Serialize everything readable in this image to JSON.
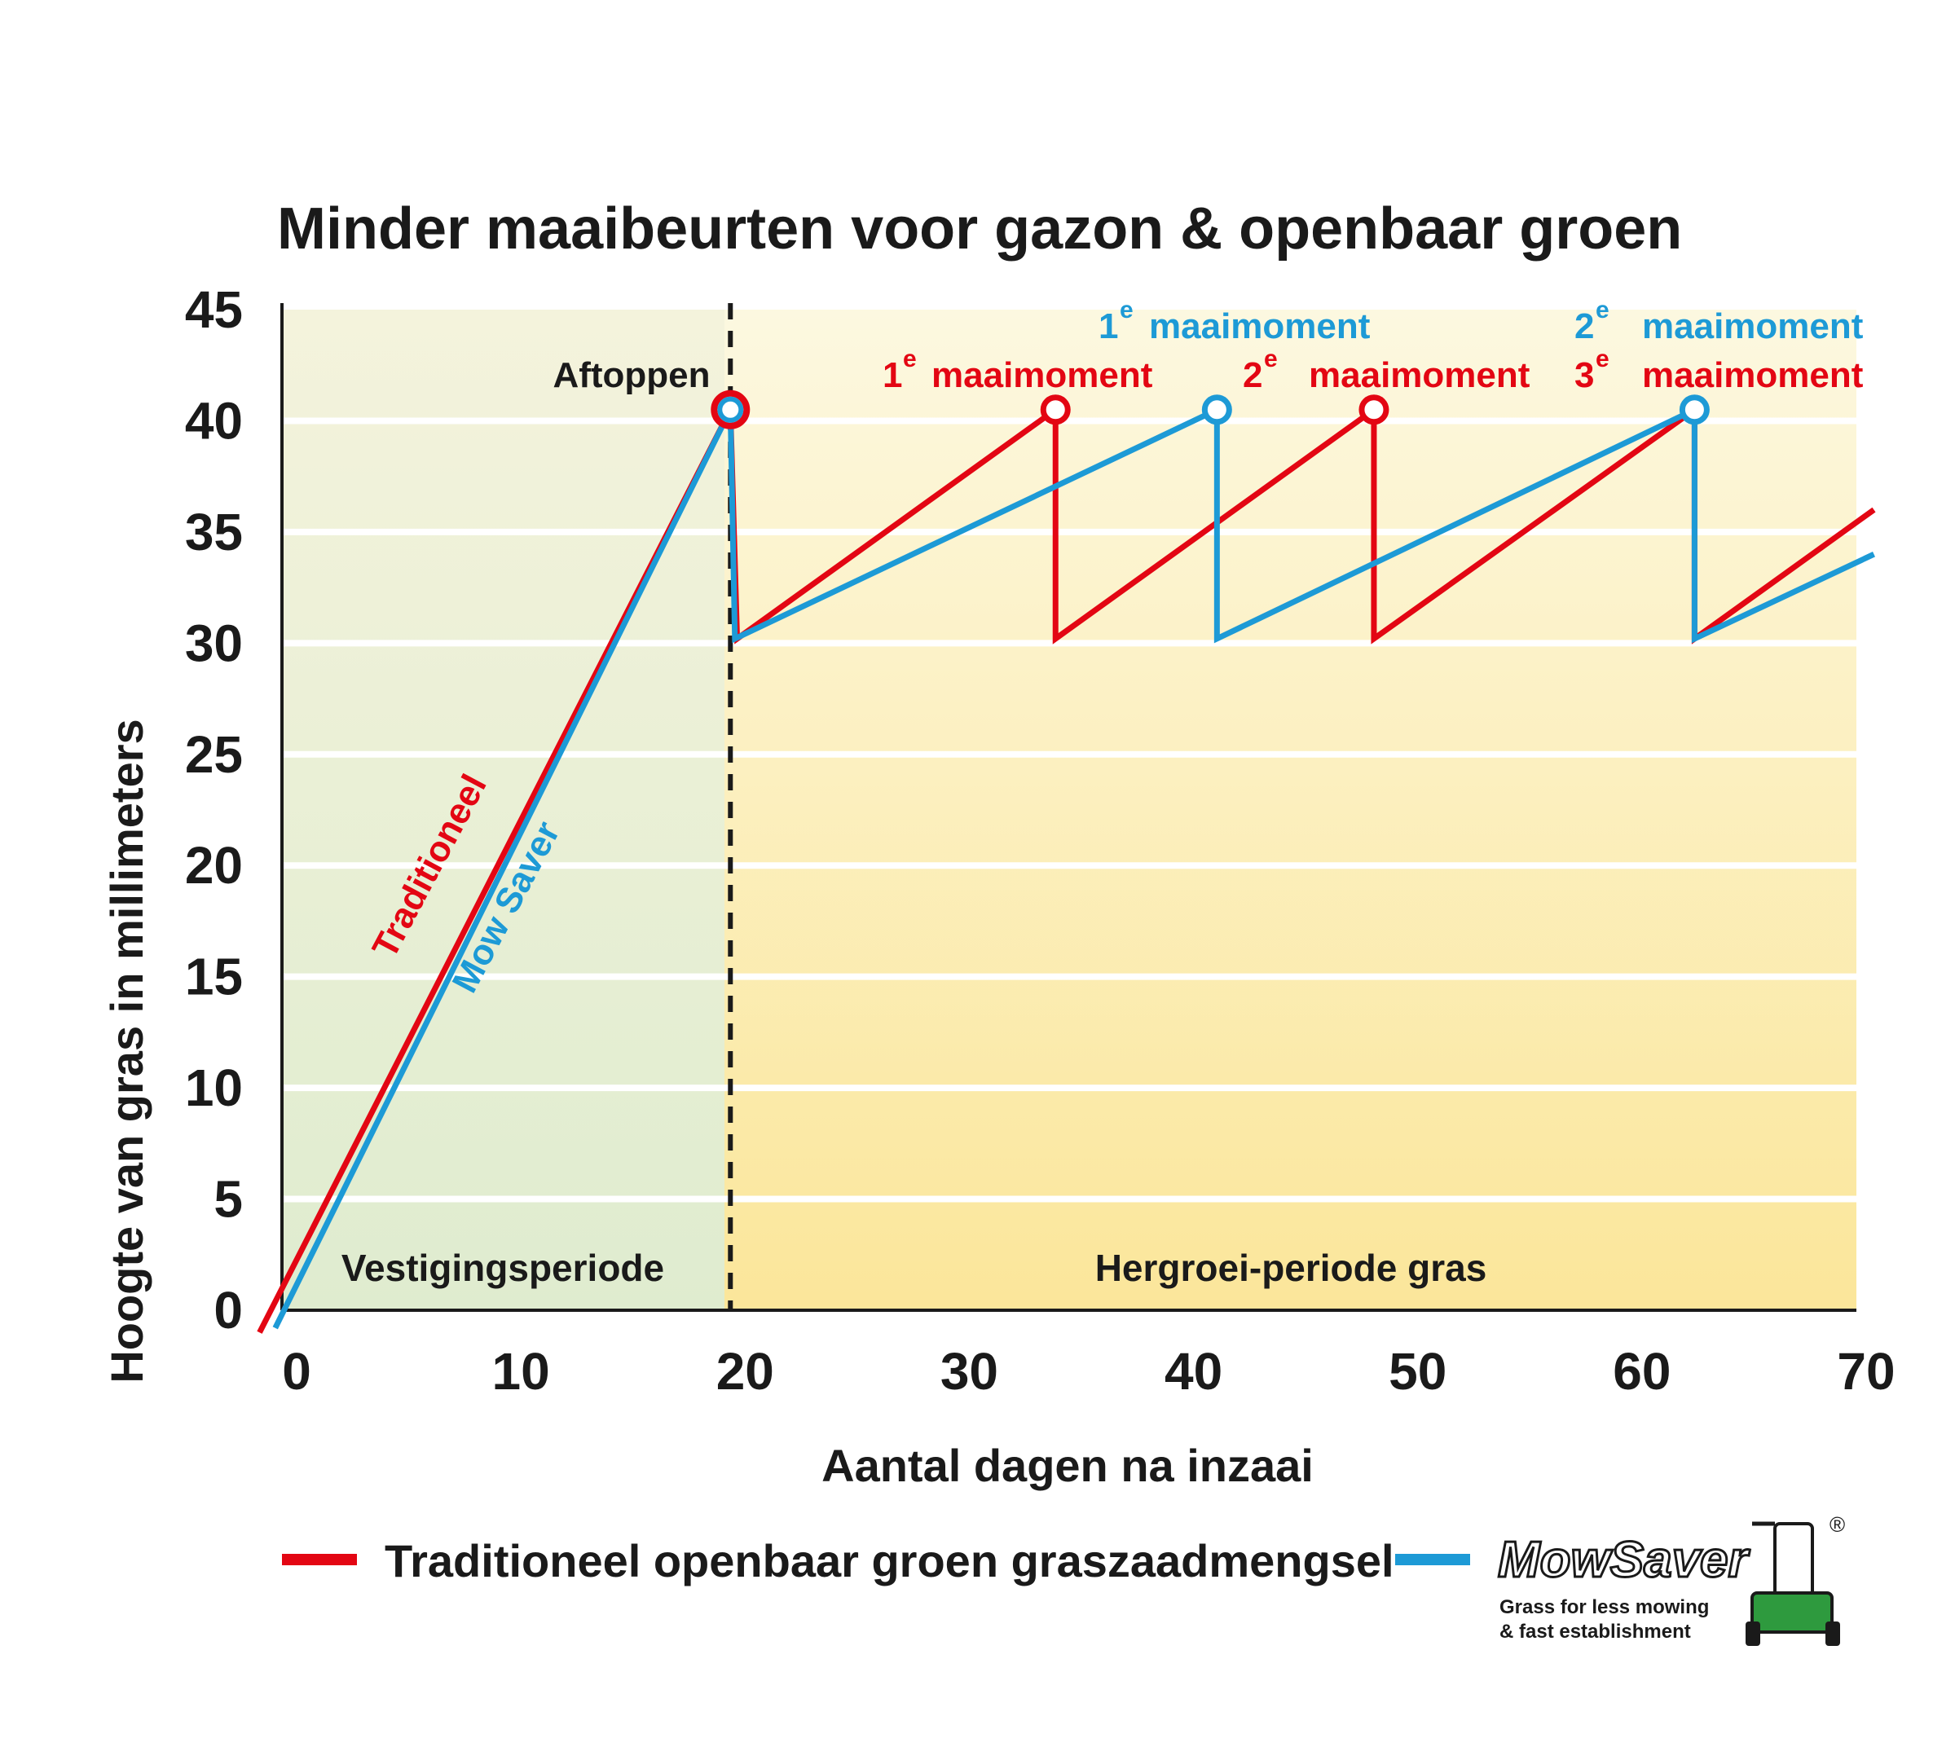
{
  "colors": {
    "traditional": "#e30613",
    "mowsaver": "#1d9ad6",
    "establishment_top": "#f4f3dc",
    "establishment_bottom": "#dfeccf",
    "regrowth_top": "#fcf8e0",
    "regrowth_bottom": "#fbe69a",
    "logo_green": "#2e9a3e"
  },
  "chart_data": {
    "type": "line",
    "title": "Minder maaibeurten voor gazon & openbaar groen",
    "xlabel": "Aantal dagen na inzaai",
    "ylabel": "Hoogte van gras in millimeters",
    "xlim": [
      0,
      70
    ],
    "ylim": [
      0,
      45
    ],
    "x_ticks": [
      0,
      10,
      20,
      30,
      40,
      50,
      60,
      70
    ],
    "y_ticks": [
      0,
      5,
      10,
      15,
      20,
      25,
      30,
      35,
      40,
      45
    ],
    "grid": true,
    "series": [
      {
        "name": "Traditioneel",
        "color": "traditional",
        "points": [
          [
            -1,
            -1
          ],
          [
            20,
            40.5
          ],
          [
            20.3,
            30.2
          ],
          [
            34.5,
            40.5
          ],
          [
            34.5,
            30.2
          ],
          [
            48.7,
            40.5
          ],
          [
            48.7,
            30.2
          ],
          [
            63,
            40.5
          ],
          [
            63,
            30.2
          ],
          [
            71,
            36
          ]
        ]
      },
      {
        "name": "Mow Saver",
        "color": "mowsaver",
        "points": [
          [
            -0.3,
            -0.8
          ],
          [
            20,
            40.5
          ],
          [
            20.2,
            30.2
          ],
          [
            41.7,
            40.5
          ],
          [
            41.7,
            30.2
          ],
          [
            63,
            40.5
          ],
          [
            63,
            30.2
          ],
          [
            71,
            34
          ]
        ]
      }
    ],
    "markers": [
      {
        "x": 20,
        "y": 40.5,
        "series": "both"
      },
      {
        "x": 34.5,
        "y": 40.5,
        "series": "traditional"
      },
      {
        "x": 41.7,
        "y": 40.5,
        "series": "mowsaver"
      },
      {
        "x": 48.7,
        "y": 40.5,
        "series": "traditional"
      },
      {
        "x": 63,
        "y": 40.5,
        "series": "mowsaver"
      }
    ],
    "divider_x": 20,
    "annotations": [
      {
        "text": "Aftoppen",
        "sup": "",
        "color": "dark"
      },
      {
        "text": "maaimoment",
        "sup": "e",
        "num": "1",
        "color": "traditional"
      },
      {
        "text": "maaimoment",
        "sup": "e",
        "num": "2",
        "color": "traditional"
      },
      {
        "text": "maaimoment",
        "sup": "e",
        "num": "3",
        "color": "traditional"
      },
      {
        "text": "maaimoment",
        "sup": "e",
        "num": "1",
        "color": "mowsaver"
      },
      {
        "text": "maaimoment",
        "sup": "e",
        "num": "2",
        "color": "mowsaver"
      }
    ],
    "line_labels": {
      "traditional": "Traditioneel",
      "mowsaver": "Mow Saver"
    },
    "periods": {
      "establishment": "Vestigingsperiode",
      "regrowth": "Hergroei-periode gras"
    }
  },
  "legend": {
    "traditional_label": "Traditioneel openbaar groen graszaadmengsel",
    "logo_text": "MowSaver",
    "registered": "®",
    "tagline_1": "Grass for less mowing",
    "tagline_2": "& fast establishment"
  }
}
